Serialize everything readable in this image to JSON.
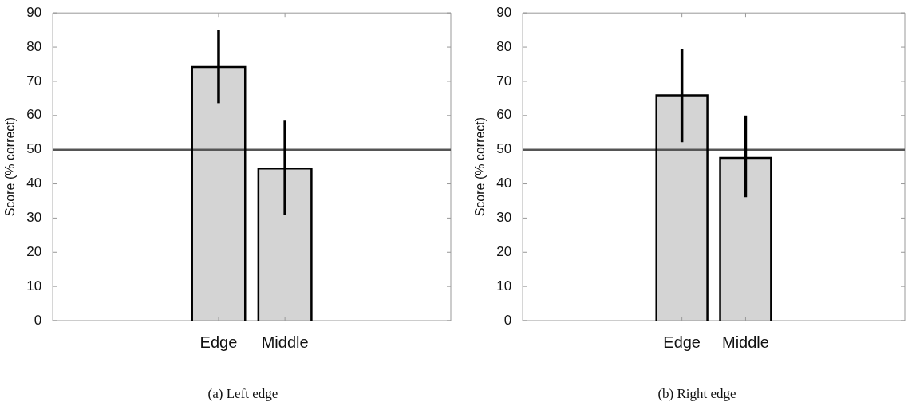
{
  "chart_data": [
    {
      "type": "bar",
      "categories": [
        "Edge",
        "Middle"
      ],
      "values": [
        74.2,
        44.5
      ],
      "color": "#d4d4d4",
      "errors": [
        [
          63.6,
          85.0
        ],
        [
          30.9,
          58.5
        ]
      ],
      "ylabel": "Score (% correct)",
      "ylim": [
        0,
        90
      ],
      "yticks": [
        0,
        10,
        20,
        30,
        40,
        50,
        60,
        70,
        80,
        90
      ],
      "ref_lines": [
        {
          "axis": "y",
          "value": 50,
          "color": "#555555"
        }
      ],
      "annotations": [
        "(a) Left edge"
      ]
    },
    {
      "type": "bar",
      "categories": [
        "Edge",
        "Middle"
      ],
      "values": [
        65.9,
        47.6
      ],
      "color": "#d4d4d4",
      "errors": [
        [
          52.2,
          79.5
        ],
        [
          36.1,
          60.0
        ]
      ],
      "ylabel": "Score (% correct)",
      "ylim": [
        0,
        90
      ],
      "yticks": [
        0,
        10,
        20,
        30,
        40,
        50,
        60,
        70,
        80,
        90
      ],
      "ref_lines": [
        {
          "axis": "y",
          "value": 50,
          "color": "#555555"
        }
      ],
      "annotations": [
        "(b) Right edge"
      ]
    }
  ]
}
